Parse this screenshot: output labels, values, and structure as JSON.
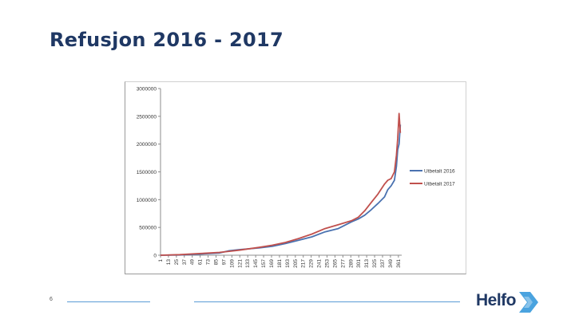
{
  "slide": {
    "title": "Refusjon 2016 - 2017",
    "number": "6",
    "logo_text": "Helfo"
  },
  "colors": {
    "title": "#1f3864",
    "series_2016": "#4a72b0",
    "series_2017": "#c0504d",
    "accent_line": "#5b9bd5",
    "logo_mark": "#4aa3df"
  },
  "chart_data": {
    "type": "line",
    "title": "",
    "xlabel": "",
    "ylabel": "",
    "ylim": [
      0,
      3000000
    ],
    "xlim": [
      1,
      366
    ],
    "y_ticks": [
      "0",
      "500000",
      "1000000",
      "1500000",
      "2000000",
      "2500000",
      "3000000"
    ],
    "y_tick_values": [
      0,
      500000,
      1000000,
      1500000,
      2000000,
      2500000,
      3000000
    ],
    "x_ticks": [
      "1",
      "13",
      "25",
      "37",
      "49",
      "61",
      "73",
      "85",
      "97",
      "109",
      "121",
      "133",
      "145",
      "157",
      "169",
      "181",
      "193",
      "205",
      "217",
      "229",
      "241",
      "253",
      "265",
      "277",
      "289",
      "301",
      "313",
      "325",
      "337",
      "349",
      "361"
    ],
    "grid": false,
    "legend_position": "right",
    "series": [
      {
        "name": "Utbetalt 2016",
        "color": "#4a72b0",
        "x": [
          1,
          30,
          60,
          90,
          105,
          120,
          150,
          170,
          190,
          210,
          230,
          250,
          270,
          290,
          300,
          310,
          320,
          330,
          340,
          345,
          350,
          355,
          358,
          360,
          362,
          364
        ],
        "values": [
          0,
          5000,
          20000,
          40000,
          80000,
          100000,
          130000,
          160000,
          210000,
          270000,
          330000,
          420000,
          480000,
          600000,
          650000,
          720000,
          820000,
          930000,
          1050000,
          1180000,
          1250000,
          1350000,
          1600000,
          1900000,
          2000000,
          2350000
        ]
      },
      {
        "name": "Utbetalt 2017",
        "color": "#c0504d",
        "x": [
          1,
          30,
          60,
          90,
          105,
          120,
          150,
          170,
          190,
          210,
          230,
          250,
          270,
          290,
          300,
          310,
          320,
          330,
          340,
          345,
          350,
          355,
          358,
          360,
          362,
          364
        ],
        "values": [
          0,
          10000,
          30000,
          50000,
          70000,
          90000,
          140000,
          180000,
          230000,
          300000,
          380000,
          480000,
          550000,
          620000,
          680000,
          800000,
          950000,
          1100000,
          1280000,
          1350000,
          1380000,
          1500000,
          1800000,
          2100000,
          2550000,
          2200000
        ]
      }
    ]
  }
}
